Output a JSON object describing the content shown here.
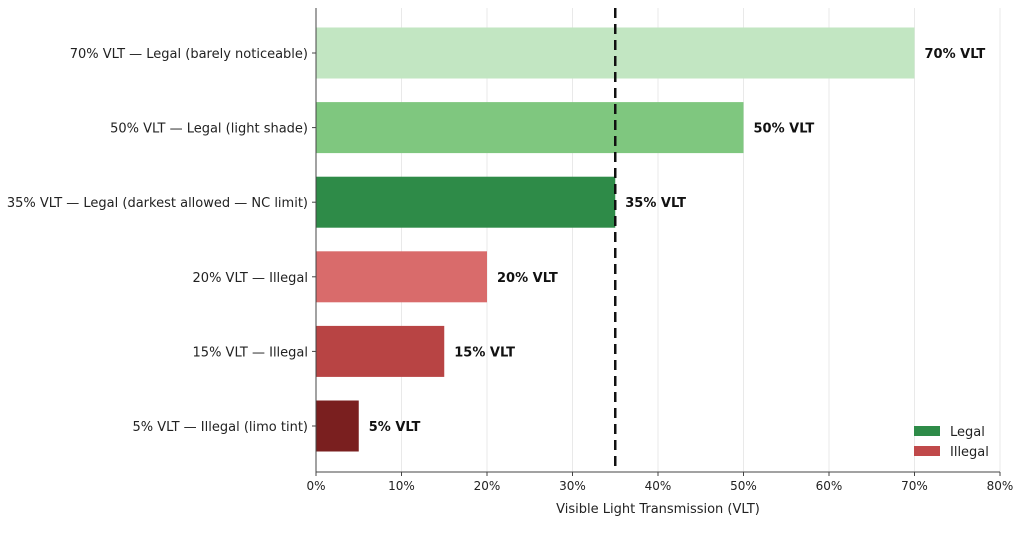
{
  "chart_data": {
    "type": "bar",
    "orientation": "horizontal",
    "title": "",
    "xlabel": "Visible Light Transmission (VLT)",
    "ylabel": "",
    "xlim": [
      0,
      80
    ],
    "xticks": [
      0,
      10,
      20,
      30,
      40,
      50,
      60,
      70,
      80
    ],
    "xtick_labels": [
      "0%",
      "10%",
      "20%",
      "30%",
      "40%",
      "50%",
      "60%",
      "70%",
      "80%"
    ],
    "grid": "vertical",
    "reference_line": {
      "value": 35,
      "style": "dashed",
      "color": "#111111"
    },
    "categories": [
      "70% VLT — Legal (barely noticeable)",
      "50% VLT — Legal (light shade)",
      "35% VLT — Legal (darkest allowed — NC limit)",
      "20% VLT — Illegal",
      "15% VLT — Illegal",
      "5% VLT — Illegal (limo tint)"
    ],
    "values": [
      70,
      50,
      35,
      20,
      15,
      5
    ],
    "bar_labels": [
      "70% VLT",
      "50% VLT",
      "35% VLT",
      "20% VLT",
      "15% VLT",
      "5% VLT"
    ],
    "bar_colors": [
      "#c2e6c2",
      "#7fc77f",
      "#2e8b48",
      "#d96b6b",
      "#b84444",
      "#7a1f1f"
    ],
    "legend": {
      "placement": "bottom-right",
      "items": [
        {
          "label": "Legal",
          "color": "#2e8b48"
        },
        {
          "label": "Illegal",
          "color": "#c0494a"
        }
      ]
    }
  }
}
